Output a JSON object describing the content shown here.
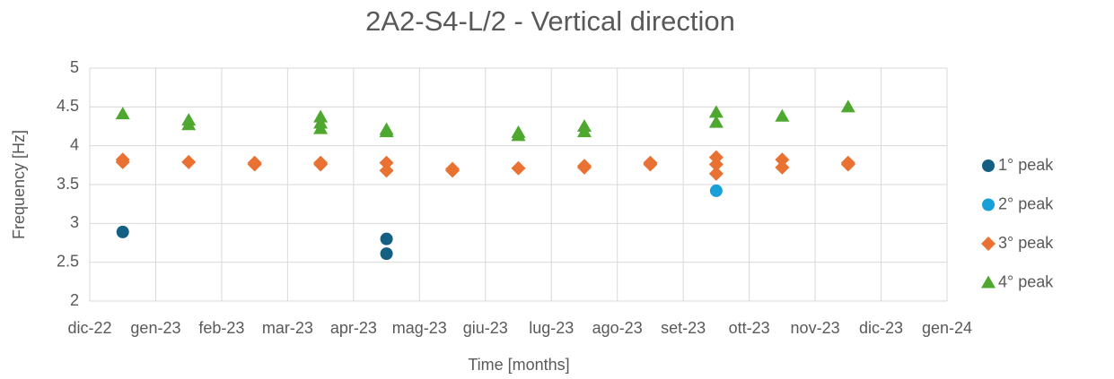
{
  "chart_data": {
    "type": "scatter",
    "title": "2A2-S4-L/2 - Vertical direction",
    "x_label": "Time [months]",
    "y_label": "Frequency [Hz]",
    "xlim": [
      "2022-12",
      "2024-01"
    ],
    "xticks": [
      {
        "value": "2022-12",
        "label": "dic-22"
      },
      {
        "value": "2023-01",
        "label": "gen-23"
      },
      {
        "value": "2023-02",
        "label": "feb-23"
      },
      {
        "value": "2023-03",
        "label": "mar-23"
      },
      {
        "value": "2023-04",
        "label": "apr-23"
      },
      {
        "value": "2023-05",
        "label": "mag-23"
      },
      {
        "value": "2023-06",
        "label": "giu-23"
      },
      {
        "value": "2023-07",
        "label": "lug-23"
      },
      {
        "value": "2023-08",
        "label": "ago-23"
      },
      {
        "value": "2023-09",
        "label": "set-23"
      },
      {
        "value": "2023-10",
        "label": "ott-23"
      },
      {
        "value": "2023-11",
        "label": "nov-23"
      },
      {
        "value": "2023-12",
        "label": "dic-23"
      },
      {
        "value": "2024-01",
        "label": "gen-24"
      }
    ],
    "ylim": [
      2,
      5
    ],
    "yticks": [
      2,
      2.5,
      3,
      3.5,
      4,
      4.5,
      5
    ],
    "grid": true,
    "legend": "right",
    "series": [
      {
        "name": "1° peak",
        "color": "#156082",
        "marker": "circle",
        "x": [
          "2022-12",
          "2023-04",
          "2023-04"
        ],
        "values": [
          2.89,
          2.8,
          2.61
        ]
      },
      {
        "name": "2° peak",
        "color": "#1aa0d8",
        "marker": "circle",
        "x": [
          "2023-09"
        ],
        "values": [
          3.42
        ]
      },
      {
        "name": "3° peak",
        "color": "#e97132",
        "marker": "diamond",
        "x": [
          "2022-12",
          "2022-12",
          "2023-01",
          "2023-02",
          "2023-02",
          "2023-03",
          "2023-03",
          "2023-04",
          "2023-04",
          "2023-05",
          "2023-05",
          "2023-06",
          "2023-07",
          "2023-07",
          "2023-08",
          "2023-08",
          "2023-09",
          "2023-09",
          "2023-09",
          "2023-10",
          "2023-10",
          "2023-11",
          "2023-11"
        ],
        "values": [
          3.82,
          3.79,
          3.79,
          3.78,
          3.76,
          3.78,
          3.76,
          3.78,
          3.68,
          3.7,
          3.68,
          3.71,
          3.74,
          3.72,
          3.78,
          3.76,
          3.85,
          3.76,
          3.64,
          3.82,
          3.72,
          3.78,
          3.76
        ]
      },
      {
        "name": "4° peak",
        "color": "#4ea72e",
        "marker": "triangle",
        "x": [
          "2022-12",
          "2023-01",
          "2023-01",
          "2023-03",
          "2023-03",
          "2023-03",
          "2023-04",
          "2023-04",
          "2023-06",
          "2023-06",
          "2023-07",
          "2023-07",
          "2023-09",
          "2023-09",
          "2023-10",
          "2023-11"
        ],
        "values": [
          4.41,
          4.33,
          4.27,
          4.37,
          4.29,
          4.22,
          4.21,
          4.18,
          4.17,
          4.13,
          4.25,
          4.18,
          4.43,
          4.3,
          4.38,
          4.5
        ]
      }
    ]
  }
}
